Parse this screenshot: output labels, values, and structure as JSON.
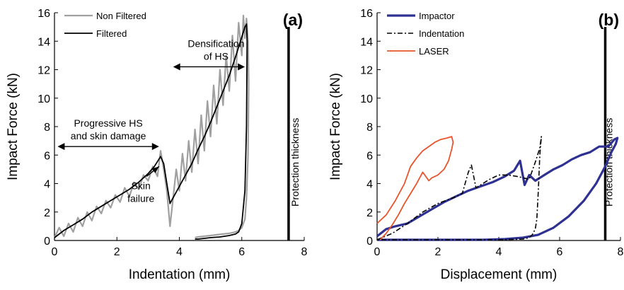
{
  "chart_data": [
    {
      "type": "line",
      "panel_label": "(a)",
      "xlabel": "Indentation (mm)",
      "ylabel": "Impact Force (kN)",
      "xlim": [
        0,
        8
      ],
      "ylim": [
        0,
        16
      ],
      "xticks": [
        "0",
        "2",
        "4",
        "6",
        "8"
      ],
      "yticks": [
        "0",
        "2",
        "4",
        "6",
        "8",
        "10",
        "12",
        "14",
        "16"
      ],
      "grid": false,
      "legend_position": "top-left",
      "series": [
        {
          "name": "Non Filtered",
          "color": "#a0a0a0",
          "x": [
            0,
            0.15,
            0.3,
            0.45,
            0.6,
            0.75,
            0.9,
            1.05,
            1.2,
            1.35,
            1.5,
            1.65,
            1.8,
            1.95,
            2.1,
            2.25,
            2.4,
            2.55,
            2.7,
            2.85,
            3.0,
            3.15,
            3.3,
            3.4,
            3.5,
            3.6,
            3.7,
            3.8,
            3.9,
            4.0,
            4.1,
            4.2,
            4.3,
            4.4,
            4.5,
            4.6,
            4.7,
            4.8,
            4.9,
            5.0,
            5.1,
            5.2,
            5.3,
            5.4,
            5.5,
            5.6,
            5.7,
            5.8,
            5.9,
            6.0,
            6.05,
            6.1,
            6.15,
            6.2,
            6.22,
            6.2,
            6.15,
            6.1,
            6.0,
            5.9,
            5.8,
            5.6,
            5.4,
            5.2,
            5.0,
            4.8,
            4.6,
            4.5
          ],
          "y": [
            0.2,
            0.9,
            0.3,
            1.2,
            0.6,
            1.6,
            1.0,
            2.0,
            1.4,
            2.4,
            1.9,
            2.8,
            2.3,
            3.2,
            2.7,
            3.7,
            3.1,
            4.1,
            3.6,
            4.6,
            4.2,
            5.2,
            4.5,
            6.3,
            5.0,
            3.5,
            1.0,
            3.0,
            5.0,
            3.5,
            6.1,
            4.2,
            7.0,
            4.8,
            7.8,
            5.4,
            8.8,
            6.3,
            9.8,
            7.3,
            10.9,
            8.2,
            12.0,
            9.5,
            13.0,
            10.5,
            14.4,
            11.2,
            15.3,
            13.0,
            15.8,
            14.2,
            15.6,
            14.0,
            11.0,
            6.0,
            3.0,
            1.5,
            0.9,
            0.7,
            0.6,
            0.5,
            0.45,
            0.4,
            0.35,
            0.3,
            0.25,
            0.2
          ]
        },
        {
          "name": "Filtered",
          "color": "#000000",
          "x": [
            0,
            0.3,
            0.6,
            0.9,
            1.2,
            1.5,
            1.8,
            2.1,
            2.4,
            2.7,
            3.0,
            3.2,
            3.4,
            3.5,
            3.6,
            3.7,
            3.8,
            4.0,
            4.2,
            4.4,
            4.6,
            4.8,
            5.0,
            5.2,
            5.4,
            5.6,
            5.8,
            6.0,
            6.1,
            6.15,
            6.17,
            6.15,
            6.1,
            6.0,
            5.9,
            5.8,
            5.6,
            5.3,
            5.0,
            4.8,
            4.6,
            4.5
          ],
          "y": [
            0.2,
            0.7,
            1.1,
            1.5,
            2.0,
            2.4,
            2.8,
            3.2,
            3.6,
            4.1,
            4.7,
            5.2,
            5.9,
            5.4,
            4.0,
            2.6,
            3.0,
            3.8,
            4.6,
            5.4,
            6.4,
            7.3,
            8.3,
            9.4,
            10.5,
            11.6,
            12.9,
            14.3,
            15.0,
            15.2,
            14.0,
            8.0,
            3.5,
            1.2,
            0.6,
            0.45,
            0.35,
            0.25,
            0.2,
            0.15,
            0.1,
            0.1
          ]
        }
      ],
      "vertical_line": {
        "x": 7.5,
        "y_range": [
          0,
          15
        ],
        "label": "Protection thickness",
        "color": "#000000"
      },
      "annotations": [
        {
          "text_lines": [
            "Densification",
            "of HS"
          ],
          "arrow_x": [
            3.8,
            6.1
          ],
          "arrow_y": 12.2
        },
        {
          "text_lines": [
            "Progressive HS",
            "and skin damage"
          ],
          "arrow_x": [
            0.1,
            3.35
          ],
          "arrow_y": 6.6
        },
        {
          "text_lines": [
            "Skin",
            "failure"
          ],
          "pointer_from": [
            2.95,
            4.5
          ],
          "pointer_to": [
            3.35,
            5.2
          ]
        }
      ]
    },
    {
      "type": "line",
      "panel_label": "(b)",
      "xlabel": "Displacement (mm)",
      "ylabel": "Impact Force (kN)",
      "xlim": [
        0,
        8
      ],
      "ylim": [
        0,
        16
      ],
      "xticks": [
        "0",
        "2",
        "4",
        "6",
        "8"
      ],
      "yticks": [
        "0",
        "2",
        "4",
        "6",
        "8",
        "10",
        "12",
        "14",
        "16"
      ],
      "grid": false,
      "legend_position": "top-left",
      "series": [
        {
          "name": "Impactor",
          "color": "#2e3192",
          "x": [
            0,
            0.3,
            0.6,
            1.0,
            1.4,
            1.8,
            2.2,
            2.6,
            3.0,
            3.4,
            3.8,
            4.2,
            4.5,
            4.7,
            4.85,
            5.0,
            5.2,
            5.5,
            5.8,
            6.1,
            6.4,
            6.7,
            7.0,
            7.3,
            7.6,
            7.8,
            7.9,
            7.85,
            7.7,
            7.5,
            7.2,
            6.8,
            6.3,
            5.8,
            5.3,
            4.8,
            4.2,
            3.5,
            2.8,
            2.0,
            1.2,
            0.5,
            0
          ],
          "y": [
            0.3,
            0.8,
            1.0,
            1.2,
            1.7,
            2.2,
            2.7,
            3.1,
            3.5,
            3.8,
            4.1,
            4.5,
            4.9,
            5.6,
            3.9,
            4.6,
            4.2,
            4.6,
            5.0,
            5.3,
            5.7,
            6.0,
            6.2,
            6.6,
            6.6,
            7.1,
            7.2,
            6.8,
            6.2,
            5.2,
            4.0,
            2.8,
            1.7,
            0.9,
            0.4,
            0.2,
            0.1,
            0.05,
            0.05,
            0.05,
            0.05,
            0.05,
            0.05
          ]
        },
        {
          "name": "Indentation",
          "color": "#000000",
          "x": [
            0,
            0.5,
            1.0,
            1.5,
            2.0,
            2.5,
            2.8,
            3.0,
            3.1,
            3.25,
            3.4,
            3.7,
            4.0,
            4.3,
            4.6,
            4.8,
            5.0,
            5.2,
            5.35,
            5.4,
            5.35,
            5.3,
            5.25,
            5.2,
            5.1,
            5.0,
            4.8,
            4.0,
            3.0,
            2.0,
            1.0,
            0
          ],
          "y": [
            0.05,
            0.5,
            1.2,
            2.0,
            2.6,
            3.0,
            3.3,
            4.8,
            5.3,
            3.7,
            3.9,
            4.3,
            4.6,
            4.6,
            4.5,
            4.4,
            4.3,
            5.5,
            6.5,
            7.3,
            6.0,
            3.5,
            1.5,
            0.8,
            0.4,
            0.2,
            0.1,
            0.05,
            0.05,
            0.05,
            0.05,
            0.05
          ]
        },
        {
          "name": "LASER",
          "color": "#e8542c",
          "x": [
            0,
            0.3,
            0.6,
            0.9,
            1.1,
            1.3,
            1.5,
            1.7,
            1.9,
            2.1,
            2.3,
            2.45,
            2.5,
            2.45,
            2.35,
            2.2,
            2.0,
            1.8,
            1.7,
            1.6,
            1.5,
            1.3,
            1.1,
            0.9,
            0.7,
            0.5,
            0.3,
            0.1
          ],
          "y": [
            1.2,
            1.8,
            2.8,
            4.0,
            5.2,
            5.8,
            6.3,
            6.6,
            6.9,
            7.1,
            7.2,
            7.3,
            6.9,
            6.4,
            5.6,
            5.0,
            4.6,
            4.4,
            4.2,
            4.5,
            4.8,
            4.0,
            3.3,
            2.6,
            1.8,
            1.1,
            0.5,
            0.05
          ]
        }
      ],
      "vertical_line": {
        "x": 7.5,
        "y_range": [
          0,
          15
        ],
        "label": "Protection thickness",
        "color": "#000000"
      }
    }
  ]
}
